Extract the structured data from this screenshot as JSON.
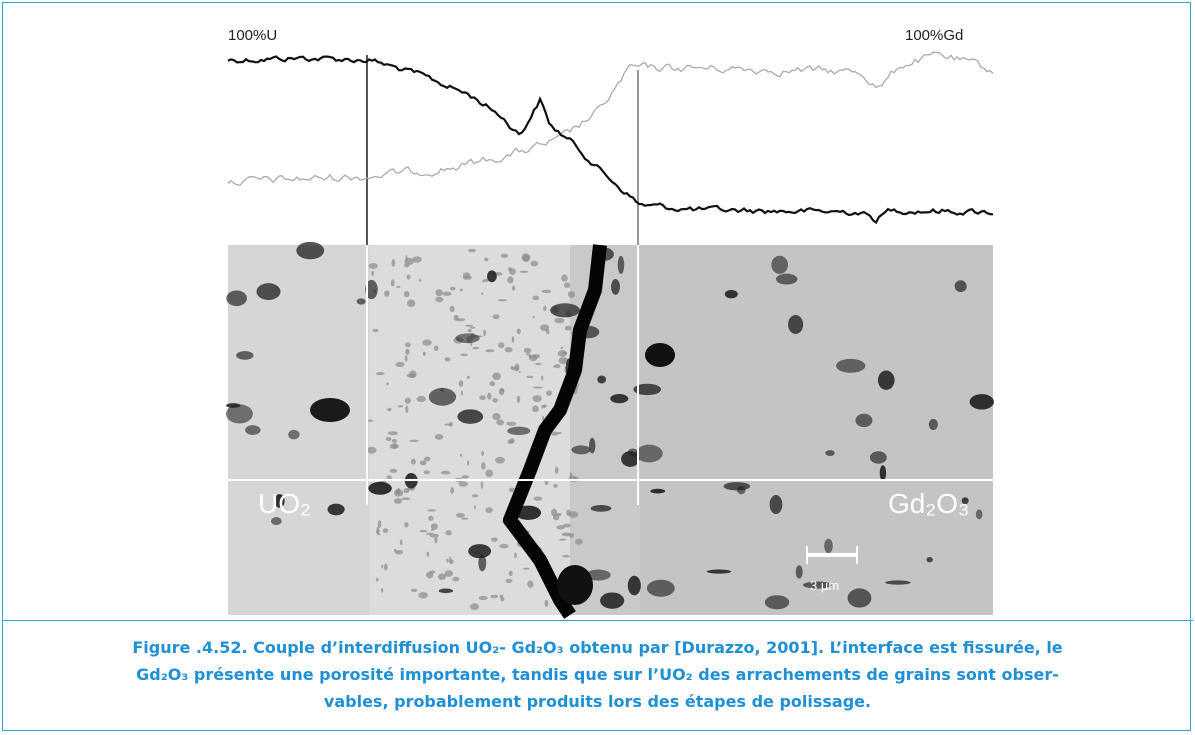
{
  "figure": {
    "labels": {
      "left_top": "100%U",
      "right_top": "100%Gd",
      "left_phase": "UO₂",
      "right_phase": "Gd₂O₃",
      "scale_bar": "3 µm"
    }
  },
  "caption": {
    "lines": [
      "Figure .4.52. Couple d’interdiffusion UO₂- Gd₂O₃ obtenu par [Durazzo, 2001]. L’interface est fissurée, le",
      "Gd₂O₃ présente une porosité importante, tandis que sur l’UO₂ des arrachements de grains sont obser-",
      "vables, probablement produits lors des étapes de polissage."
    ]
  }
}
